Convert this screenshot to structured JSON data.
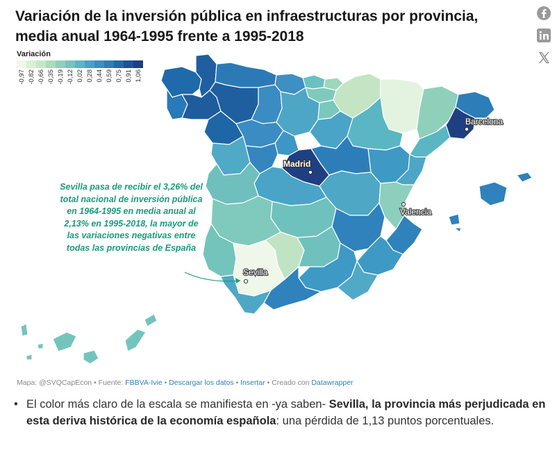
{
  "title": "Variación de la inversión pública en infraestructuras por provincia, media anual 1964-1995 frente a 1995-2018",
  "social": {
    "icons": [
      "facebook-icon",
      "linkedin-icon",
      "x-icon"
    ]
  },
  "legend": {
    "title": "Variación",
    "ticks": [
      "-0,97",
      "-0,82",
      "-0,66",
      "-0,35",
      "-0,19",
      "-0,12",
      "0,02",
      "0,28",
      "0,44",
      "0,59",
      "0,75",
      "0,91",
      "1,06"
    ],
    "colors": [
      "#eef7ea",
      "#dcefd5",
      "#c6e7c6",
      "#acdcb9",
      "#8fd0ba",
      "#73c5bc",
      "#5ab6c4",
      "#46a2c8",
      "#3890c3",
      "#2d7db8",
      "#2468ab",
      "#1d529b",
      "#1f3f83"
    ]
  },
  "cities": {
    "madrid": "Madrid",
    "barcelona": "Barcelona",
    "valencia": "Valencia",
    "sevilla": "Sevilla"
  },
  "annotation": "Sevilla pasa de recibir el 3,26% del total nacional de inversión pública en 1964-1995 en media anual al 2,13% en 1995-2018, la mayor de las variaciones negativas entre todas las provincias de España",
  "footer": {
    "map_prefix": "Mapa: @SVQCapEcon",
    "source_label": " • Fuente: ",
    "source_link": "FBBVA-Ivie",
    "sep1": " • ",
    "download_link": "Descargar los datos",
    "sep2": " • ",
    "insert_link": "Insertar",
    "created_label": " • Creado con ",
    "tool_link": "Datawrapper"
  },
  "bullet": {
    "text1": "El color más claro de la escala se manifiesta en -ya saben- ",
    "bold": "Sevilla, la provincia más perjudicada en esta deriva histórica de la economía española",
    "text2": ": una pérdida de 1,13 puntos porcentuales."
  }
}
